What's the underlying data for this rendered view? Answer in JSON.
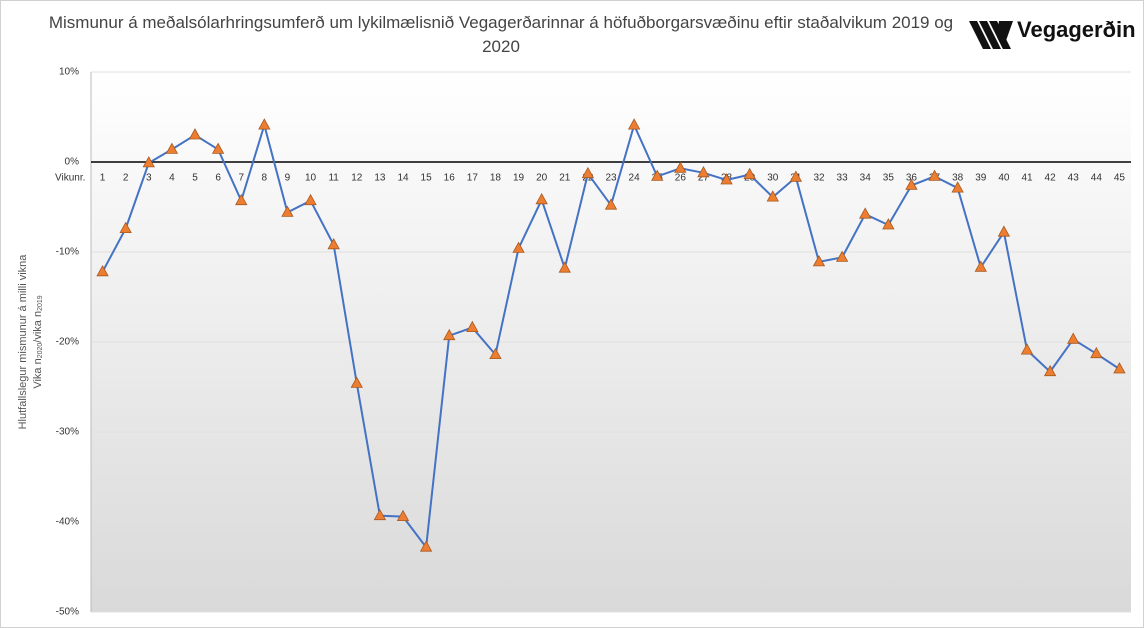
{
  "chart_data": {
    "type": "line",
    "title": "Mismunur á meðalsólarhringsumferð um lykilmælisnið Vegagerðarinnar á höfuðborgarsvæðinu eftir staðalvikum 2019 og 2020",
    "logo": "Vegagerðin",
    "x_label": "Vikunr.",
    "y_label": "Hlutfallslegur mismunur á milli vikna",
    "y_label_2": [
      "Vika n",
      "2020",
      "/vika n",
      "2019"
    ],
    "categories": [
      "1",
      "2",
      "3",
      "4",
      "5",
      "6",
      "7",
      "8",
      "9",
      "10",
      "11",
      "12",
      "13",
      "14",
      "15",
      "16",
      "17",
      "18",
      "19",
      "20",
      "21",
      "22",
      "23",
      "24",
      "25",
      "26",
      "27",
      "28",
      "29",
      "30",
      "31",
      "32",
      "33",
      "34",
      "35",
      "36",
      "37",
      "38",
      "39",
      "40",
      "41",
      "42",
      "43",
      "44",
      "45"
    ],
    "series": [
      {
        "color": "#4472c4",
        "marker_color": "#ed7d31",
        "values": [
          -12.2,
          -7.4,
          -0.1,
          1.4,
          3.0,
          1.4,
          -4.3,
          4.1,
          -5.6,
          -4.3,
          -9.2,
          -24.6,
          -39.3,
          -39.4,
          -42.8,
          -19.3,
          -18.4,
          -21.4,
          -9.6,
          -4.2,
          -11.8,
          -1.3,
          -4.8,
          4.1,
          -1.6,
          -0.7,
          -1.2,
          -2.0,
          -1.4,
          -3.9,
          -1.7,
          -11.1,
          -10.6,
          -5.8,
          -7.0,
          -2.6,
          -1.6,
          -2.9,
          -11.7,
          -7.8,
          -20.9,
          -23.3,
          -19.7,
          -21.3,
          -23.0
        ]
      }
    ],
    "ylim": [
      -50,
      10
    ],
    "yticks": [
      {
        "value": -50,
        "label": "-50%"
      },
      {
        "value": -40,
        "label": "-40%"
      },
      {
        "value": -30,
        "label": "-30%"
      },
      {
        "value": -20,
        "label": "-20%"
      },
      {
        "value": -10,
        "label": "-10%"
      },
      {
        "value": 0,
        "label": "0%"
      },
      {
        "value": 10,
        "label": "10%"
      }
    ],
    "grid": true
  }
}
